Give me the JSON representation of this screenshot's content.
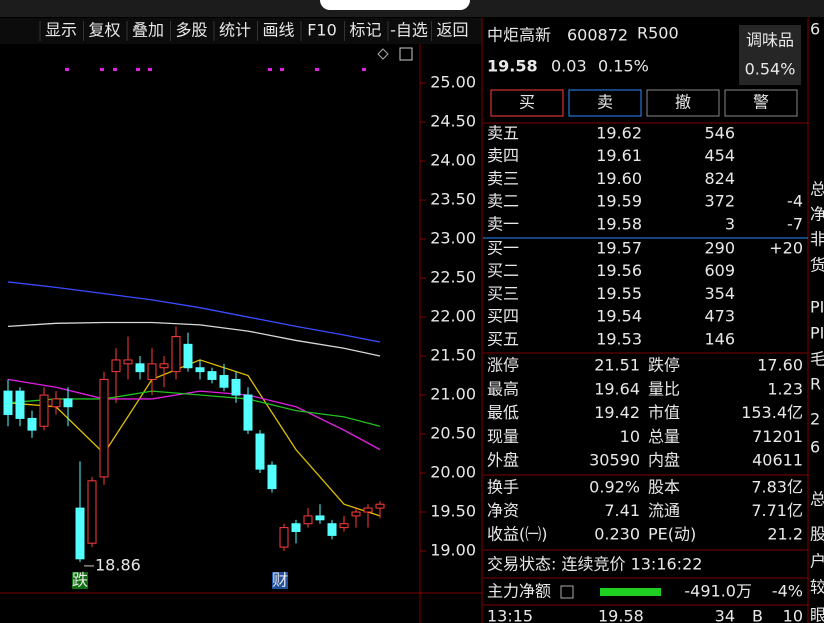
{
  "toolbar": [
    "显示",
    "复权",
    "叠加",
    "多股",
    "统计",
    "画线",
    "F10",
    "标记",
    "-自选",
    "返回"
  ],
  "chart_data": {
    "type": "candlestick",
    "ylim": [
      18.5,
      25.45
    ],
    "yticks": [
      {
        "value": 25,
        "label": "25.00"
      },
      {
        "value": 24.5,
        "label": "24.50"
      },
      {
        "value": 24,
        "label": "24.00"
      },
      {
        "value": 23.5,
        "label": "23.50"
      },
      {
        "value": 23,
        "label": "23.00"
      },
      {
        "value": 22.5,
        "label": "22.50"
      },
      {
        "value": 22,
        "label": "22.00"
      },
      {
        "value": 21.5,
        "label": "21.50"
      },
      {
        "value": 21,
        "label": "21.00"
      },
      {
        "value": 20.5,
        "label": "20.50"
      },
      {
        "value": 20,
        "label": "20.00"
      },
      {
        "value": 19.5,
        "label": "19.50"
      },
      {
        "value": 19,
        "label": "19.00"
      }
    ],
    "up_color": "#ff3c3c",
    "down_color": "#54ffff",
    "candles": [
      [
        21.05,
        21.2,
        20.6,
        20.75
      ],
      [
        21.05,
        21.1,
        20.6,
        20.7
      ],
      [
        20.7,
        20.8,
        20.45,
        20.55
      ],
      [
        20.6,
        21.1,
        20.55,
        21.0
      ],
      [
        20.85,
        21.05,
        20.75,
        20.95
      ],
      [
        20.95,
        21.1,
        20.6,
        20.85
      ],
      [
        19.55,
        20.15,
        18.86,
        18.9
      ],
      [
        19.1,
        19.95,
        19.05,
        19.9
      ],
      [
        19.95,
        21.3,
        19.85,
        21.2
      ],
      [
        21.3,
        21.6,
        20.9,
        21.45
      ],
      [
        21.4,
        21.75,
        21.2,
        21.45
      ],
      [
        21.4,
        21.5,
        21.2,
        21.3
      ],
      [
        21.2,
        21.6,
        21.0,
        21.4
      ],
      [
        21.35,
        21.5,
        21.1,
        21.4
      ],
      [
        21.3,
        21.88,
        21.2,
        21.75
      ],
      [
        21.65,
        21.8,
        21.3,
        21.35
      ],
      [
        21.35,
        21.45,
        21.2,
        21.3
      ],
      [
        21.3,
        21.35,
        21.15,
        21.2
      ],
      [
        21.25,
        21.4,
        21.05,
        21.1
      ],
      [
        21.2,
        21.3,
        20.9,
        21.0
      ],
      [
        21.0,
        21.1,
        20.5,
        20.55
      ],
      [
        20.5,
        20.55,
        20.0,
        20.05
      ],
      [
        20.1,
        20.15,
        19.75,
        19.8
      ],
      [
        19.05,
        19.35,
        19.0,
        19.3
      ],
      [
        19.35,
        19.4,
        19.1,
        19.25
      ],
      [
        19.35,
        19.55,
        19.3,
        19.45
      ],
      [
        19.45,
        19.6,
        19.35,
        19.4
      ],
      [
        19.35,
        19.4,
        19.15,
        19.2
      ],
      [
        19.3,
        19.45,
        19.25,
        19.35
      ],
      [
        19.45,
        19.55,
        19.3,
        19.5
      ],
      [
        19.5,
        19.6,
        19.3,
        19.55
      ],
      [
        19.55,
        19.64,
        19.42,
        19.6
      ]
    ],
    "ma_lines": [
      {
        "color": "#3a4cff",
        "x": [
          0,
          4,
          8,
          12,
          16,
          20,
          24,
          28,
          31
        ],
        "values": [
          22.45,
          22.38,
          22.3,
          22.22,
          22.12,
          22.0,
          21.88,
          21.77,
          21.68
        ]
      },
      {
        "color": "#d8d8d8",
        "x": [
          0,
          4,
          8,
          12,
          16,
          20,
          24,
          28,
          31
        ],
        "values": [
          21.88,
          21.92,
          21.93,
          21.93,
          21.9,
          21.82,
          21.7,
          21.6,
          21.5
        ]
      },
      {
        "color": "#e0c000",
        "x": [
          0,
          4,
          8,
          12,
          16,
          20,
          24,
          28,
          31
        ],
        "values": [
          20.9,
          20.85,
          20.25,
          21.2,
          21.45,
          21.25,
          20.3,
          19.6,
          19.45
        ]
      },
      {
        "color": "#e020e0",
        "x": [
          0,
          4,
          8,
          12,
          16,
          20,
          24,
          28,
          31
        ],
        "values": [
          21.2,
          21.1,
          20.95,
          20.95,
          21.05,
          21.0,
          20.85,
          20.55,
          20.3
        ]
      },
      {
        "color": "#20c020",
        "x": [
          0,
          4,
          8,
          12,
          16,
          20,
          24,
          28,
          31
        ],
        "values": [
          20.9,
          20.95,
          20.95,
          21.05,
          21.0,
          20.95,
          20.8,
          20.72,
          20.6
        ]
      }
    ],
    "badges": [
      "跌",
      "财"
    ]
  },
  "quote": {
    "name": "中炬高新",
    "code": "600872",
    "badge": "R500",
    "price": "19.58",
    "change": "0.03",
    "change_pct": "0.15%",
    "sector": "调味品",
    "sector_pct": "0.54%",
    "buttons": [
      "买",
      "卖",
      "撤",
      "警"
    ],
    "sell": [
      {
        "label": "卖五",
        "price": "19.62",
        "volume": "546",
        "color": "#ff3c3c"
      },
      {
        "label": "卖四",
        "price": "19.61",
        "volume": "454",
        "color": "#ff3c3c"
      },
      {
        "label": "卖三",
        "price": "19.60",
        "volume": "824",
        "color": "#ff3c3c"
      },
      {
        "label": "卖二",
        "price": "19.59",
        "volume": "372",
        "color": "#ff3c3c",
        "delta": "-4",
        "delta_color": "#20d020"
      },
      {
        "label": "卖一",
        "price": "19.58",
        "volume": "3",
        "color": "#ff3c3c",
        "delta": "-7",
        "delta_color": "#20d020"
      }
    ],
    "buy": [
      {
        "label": "买一",
        "price": "19.57",
        "volume": "290",
        "color": "#ff3c3c",
        "delta": "+20",
        "delta_color": "#ff3c3c"
      },
      {
        "label": "买二",
        "price": "19.56",
        "volume": "609",
        "color": "#ff3c3c"
      },
      {
        "label": "买三",
        "price": "19.55",
        "volume": "354",
        "color": "#e8e8e8"
      },
      {
        "label": "买四",
        "price": "19.54",
        "volume": "473",
        "color": "#20d020"
      },
      {
        "label": "买五",
        "price": "19.53",
        "volume": "146",
        "color": "#20d020"
      }
    ],
    "stats": [
      {
        "l1": "涨停",
        "v1": "21.51",
        "c1": "#ff3c3c",
        "l2": "跌停",
        "v2": "17.60",
        "c2": "#20d020"
      },
      {
        "l1": "最高",
        "v1": "19.64",
        "c1": "#ff3c3c",
        "l2": "量比",
        "v2": "1.23",
        "c2": "#ff3c3c"
      },
      {
        "l1": "最低",
        "v1": "19.42",
        "c1": "#20d020",
        "l2": "市值",
        "v2": "153.4亿",
        "c2": "#e8e8e8"
      },
      {
        "l1": "现量",
        "v1": "10",
        "c1": "#ff3c3c",
        "l2": "总量",
        "v2": "71201",
        "c2": "#e8e8e8"
      },
      {
        "l1": "外盘",
        "v1": "30590",
        "c1": "#ff3c3c",
        "l2": "内盘",
        "v2": "40611",
        "c2": "#20d020"
      }
    ],
    "stats2": [
      {
        "l1": "换手",
        "v1": "0.92%",
        "c1": "#e8e8e8",
        "l2": "股本",
        "v2": "7.83亿",
        "c2": "#e8e8e8"
      },
      {
        "l1": "净资",
        "v1": "7.41",
        "c1": "#e8e8e8",
        "l2": "流通",
        "v2": "7.71亿",
        "c2": "#e8e8e8"
      },
      {
        "l1": "收益(㈠)",
        "v1": "0.230",
        "c1": "#e8e8e8",
        "l2": "PE(动)",
        "v2": "21.2",
        "c2": "#e8e8e8"
      }
    ],
    "status": "交易状态: 连续竞价 13:16:22",
    "flow_label": "主力净额",
    "flow_value": "-491.0万",
    "flow_pct": "-4%",
    "tick": {
      "time": "13:15",
      "price": "19.58",
      "volume": "34",
      "side": "B",
      "count": "10"
    }
  },
  "side": [
    "6",
    "总",
    "净",
    "非",
    "货",
    "PI",
    "PI",
    "毛",
    "R",
    "2",
    "6",
    "总",
    "股",
    "户",
    "较",
    "眼"
  ]
}
